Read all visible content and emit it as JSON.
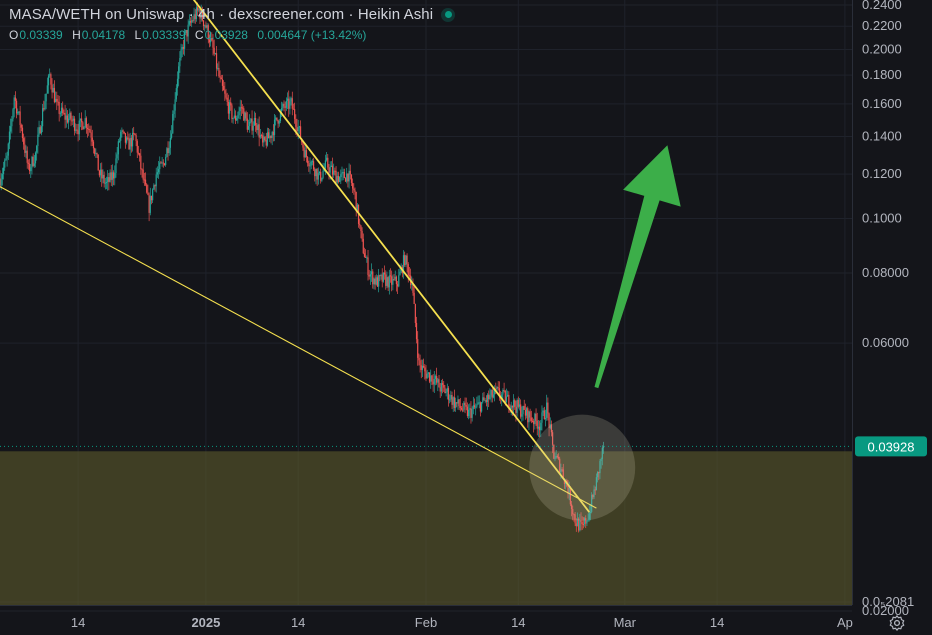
{
  "header": {
    "title": "MASA/WETH on Uniswap · 4h · dexscreener.com · Heikin Ashi",
    "ohlc": [
      {
        "key": "O",
        "value": "0.03339"
      },
      {
        "key": "H",
        "value": "0.04178"
      },
      {
        "key": "L",
        "value": "0.03339"
      },
      {
        "key": "C",
        "value": "0.03928"
      }
    ],
    "change": "0.004647 (+13.42%)"
  },
  "price_tag": "0.03928",
  "colors": {
    "background": "#14151a",
    "up": "#26a69a",
    "down": "#ef5350",
    "trendline": "#f5e04f",
    "zone": "#5b5a2c",
    "arrow": "#3cae49",
    "price_tag": "#089981"
  },
  "icons": {
    "settings": "gear-icon",
    "live": "live-dot-icon"
  },
  "chart_data": {
    "type": "candlestick",
    "title": "MASA/WETH on Uniswap · 4h · dexscreener.com · Heikin Ashi",
    "y_scale": "log",
    "ylim": [
      0.0205,
      0.245
    ],
    "y_ticks": [
      "0.2400",
      "0.2200",
      "0.2000",
      "0.1800",
      "0.1600",
      "0.1400",
      "0.1200",
      "0.1000",
      "0.08000",
      "0.06000",
      "0.02000",
      "0.0₅2081"
    ],
    "x_ticks": [
      "14",
      "2025",
      "14",
      "Feb",
      "14",
      "Mar",
      "14",
      "Ap"
    ],
    "x_tick_dates": [
      "2024-12-14",
      "2025-01-01",
      "2025-01-14",
      "2025-02-01",
      "2025-02-14",
      "2025-03-01",
      "2025-03-14",
      "2025-04-01"
    ],
    "xlim": [
      "2024-12-03",
      "2025-04-02"
    ],
    "last_price": 0.03928,
    "price_path": [
      [
        "2024-12-03",
        0.118
      ],
      [
        "2024-12-04",
        0.128
      ],
      [
        "2024-12-05",
        0.165
      ],
      [
        "2024-12-06",
        0.145
      ],
      [
        "2024-12-07",
        0.122
      ],
      [
        "2024-12-08",
        0.13
      ],
      [
        "2024-12-09",
        0.155
      ],
      [
        "2024-12-10",
        0.18
      ],
      [
        "2024-12-11",
        0.158
      ],
      [
        "2024-12-12",
        0.152
      ],
      [
        "2024-12-13",
        0.15
      ],
      [
        "2024-12-14",
        0.145
      ],
      [
        "2024-12-15",
        0.15
      ],
      [
        "2024-12-16",
        0.14
      ],
      [
        "2024-12-17",
        0.12
      ],
      [
        "2024-12-18",
        0.115
      ],
      [
        "2024-12-19",
        0.12
      ],
      [
        "2024-12-20",
        0.142
      ],
      [
        "2024-12-21",
        0.135
      ],
      [
        "2024-12-22",
        0.14
      ],
      [
        "2024-12-23",
        0.12
      ],
      [
        "2024-12-24",
        0.105
      ],
      [
        "2024-12-25",
        0.12
      ],
      [
        "2024-12-26",
        0.125
      ],
      [
        "2024-12-27",
        0.14
      ],
      [
        "2024-12-28",
        0.18
      ],
      [
        "2024-12-29",
        0.21
      ],
      [
        "2024-12-30",
        0.225
      ],
      [
        "2024-12-31",
        0.235
      ],
      [
        "2025-01-01",
        0.22
      ],
      [
        "2025-01-02",
        0.2
      ],
      [
        "2025-01-03",
        0.175
      ],
      [
        "2025-01-04",
        0.16
      ],
      [
        "2025-01-05",
        0.15
      ],
      [
        "2025-01-06",
        0.158
      ],
      [
        "2025-01-07",
        0.145
      ],
      [
        "2025-01-08",
        0.15
      ],
      [
        "2025-01-09",
        0.135
      ],
      [
        "2025-01-10",
        0.14
      ],
      [
        "2025-01-11",
        0.15
      ],
      [
        "2025-01-12",
        0.158
      ],
      [
        "2025-01-13",
        0.16
      ],
      [
        "2025-01-14",
        0.145
      ],
      [
        "2025-01-15",
        0.13
      ],
      [
        "2025-01-16",
        0.125
      ],
      [
        "2025-01-17",
        0.118
      ],
      [
        "2025-01-18",
        0.125
      ],
      [
        "2025-01-19",
        0.12
      ],
      [
        "2025-01-20",
        0.118
      ],
      [
        "2025-01-21",
        0.12
      ],
      [
        "2025-01-22",
        0.11
      ],
      [
        "2025-01-23",
        0.09
      ],
      [
        "2025-01-24",
        0.08
      ],
      [
        "2025-01-25",
        0.077
      ],
      [
        "2025-01-26",
        0.078
      ],
      [
        "2025-01-27",
        0.077
      ],
      [
        "2025-01-28",
        0.077
      ],
      [
        "2025-01-29",
        0.085
      ],
      [
        "2025-01-30",
        0.077
      ],
      [
        "2025-01-31",
        0.055
      ],
      [
        "2025-02-01",
        0.053
      ],
      [
        "2025-02-02",
        0.052
      ],
      [
        "2025-02-03",
        0.05
      ],
      [
        "2025-02-04",
        0.049
      ],
      [
        "2025-02-05",
        0.047
      ],
      [
        "2025-02-06",
        0.046
      ],
      [
        "2025-02-07",
        0.045
      ],
      [
        "2025-02-08",
        0.046
      ],
      [
        "2025-02-09",
        0.047
      ],
      [
        "2025-02-10",
        0.048
      ],
      [
        "2025-02-11",
        0.049
      ],
      [
        "2025-02-12",
        0.048
      ],
      [
        "2025-02-13",
        0.047
      ],
      [
        "2025-02-14",
        0.046
      ],
      [
        "2025-02-15",
        0.045
      ],
      [
        "2025-02-16",
        0.044
      ],
      [
        "2025-02-17",
        0.043
      ],
      [
        "2025-02-18",
        0.046
      ],
      [
        "2025-02-19",
        0.038
      ],
      [
        "2025-02-20",
        0.036
      ],
      [
        "2025-02-21",
        0.033
      ],
      [
        "2025-02-22",
        0.029
      ],
      [
        "2025-02-23",
        0.028
      ],
      [
        "2025-02-24",
        0.03
      ],
      [
        "2025-02-25",
        0.034
      ],
      [
        "2025-02-26",
        0.03928
      ]
    ],
    "annotations": {
      "upper_trendline": [
        [
          "2024-12-30",
          0.248
        ],
        [
          "2025-02-24",
          0.03
        ]
      ],
      "lower_trendline": [
        [
          "2024-12-03",
          0.114
        ],
        [
          "2025-02-25",
          0.0305
        ]
      ],
      "support_zone": [
        0.0205,
        0.0385
      ],
      "highlight_circle_center": [
        "2025-02-23",
        0.036
      ],
      "arrow": {
        "from": [
          "2025-02-25",
          0.05
        ],
        "to": [
          "2025-03-07",
          0.135
        ],
        "direction": "up"
      }
    }
  }
}
